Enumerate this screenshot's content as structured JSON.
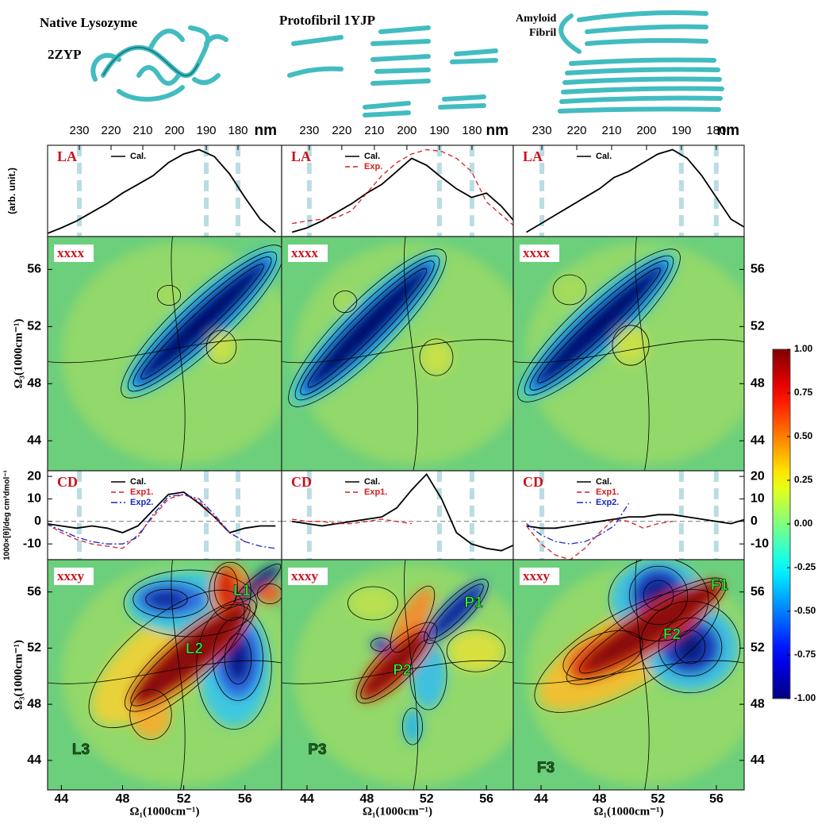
{
  "structures": [
    {
      "title": "Native Lysozyme",
      "subtitle": "2ZYP"
    },
    {
      "title": "Protofibril 1YJP"
    },
    {
      "title_lines": [
        "Amyloid",
        "Fibril"
      ]
    }
  ],
  "colorbar": {
    "ylim": [
      -1,
      1
    ],
    "yticks": [
      {
        "value": 1,
        "label": "1.00"
      },
      {
        "value": 0.75,
        "label": "0.75"
      },
      {
        "value": 0.5,
        "label": "0.50"
      },
      {
        "value": 0.25,
        "label": "0.25"
      },
      {
        "value": 0,
        "label": "0.00"
      },
      {
        "value": -0.25,
        "label": "-0.25"
      },
      {
        "value": -0.5,
        "label": "-0.50"
      },
      {
        "value": -0.75,
        "label": "-0.75"
      },
      {
        "value": -1,
        "label": "-1.00"
      }
    ]
  },
  "chart_data": [
    {
      "type": "line",
      "title": "LA",
      "ylabel": "(arb. unit.)",
      "xlim": [
        43.1,
        58.4
      ],
      "ylim": [
        0,
        1.05
      ],
      "x2lim": [
        240,
        166.25
      ],
      "x2ticks": [
        230,
        220,
        210,
        200,
        190,
        180
      ],
      "x2label": "nm",
      "vlines": [
        230,
        190,
        180
      ],
      "x": [
        43,
        44,
        45,
        46,
        47,
        48,
        49,
        50,
        51,
        52,
        53,
        54,
        55,
        56,
        57,
        58
      ],
      "series": [
        {
          "name": "Cal.",
          "color": "#000000",
          "dash": "solid",
          "values": [
            0.03,
            0.1,
            0.18,
            0.28,
            0.38,
            0.5,
            0.6,
            0.7,
            0.85,
            0.95,
            1.0,
            0.92,
            0.72,
            0.45,
            0.2,
            0.05
          ]
        }
      ]
    },
    {
      "type": "line",
      "title": "LA",
      "xlim": [
        42.3,
        57.8
      ],
      "ylim": [
        0,
        1.05
      ],
      "x2lim": [
        238.5,
        167.3
      ],
      "x2ticks": [
        230,
        220,
        210,
        200,
        190,
        180
      ],
      "x2label": "nm",
      "vlines": [
        230,
        190,
        180
      ],
      "x": [
        43,
        44,
        45,
        46,
        47,
        48,
        49,
        50,
        51,
        52,
        53,
        54,
        55,
        56,
        57,
        58
      ],
      "series": [
        {
          "name": "Cal.",
          "color": "#000000",
          "dash": "solid",
          "values": [
            0.05,
            0.1,
            0.18,
            0.28,
            0.38,
            0.5,
            0.6,
            0.75,
            0.9,
            0.82,
            0.68,
            0.55,
            0.45,
            0.5,
            0.35,
            0.15
          ]
        },
        {
          "name": "Exp.",
          "color": "#d42020",
          "dash": "dashed",
          "values": [
            0.15,
            0.18,
            0.2,
            0.22,
            0.3,
            0.5,
            0.7,
            0.85,
            0.95,
            1.0,
            0.98,
            0.9,
            0.75,
            0.4,
            0.25,
            0.1
          ]
        }
      ]
    },
    {
      "type": "line",
      "title": "LA",
      "xlim": [
        42.1,
        57.9
      ],
      "ylim": [
        0,
        1.05
      ],
      "x2lim": [
        238.2,
        172
      ],
      "x2ticks": [
        230,
        220,
        210,
        200,
        190,
        180
      ],
      "x2label": "nm",
      "vlines": [
        230,
        190,
        180
      ],
      "x": [
        43,
        44,
        45,
        46,
        47,
        48,
        49,
        50,
        51,
        52,
        53,
        54,
        55,
        56,
        57,
        58
      ],
      "series": [
        {
          "name": "Cal.",
          "color": "#000000",
          "dash": "solid",
          "values": [
            0.05,
            0.15,
            0.25,
            0.35,
            0.45,
            0.55,
            0.68,
            0.75,
            0.85,
            0.95,
            1.0,
            0.9,
            0.7,
            0.45,
            0.2,
            0.1
          ]
        }
      ]
    },
    {
      "type": "contour",
      "title": "xxxx",
      "ylabel": "Ω₃(1000cm⁻¹)",
      "xlim": [
        43.1,
        58.4
      ],
      "ylim": [
        41.9,
        58.3
      ],
      "yticks": [
        44,
        48,
        52,
        56
      ],
      "yaxis": "left"
    },
    {
      "type": "contour",
      "title": "xxxx",
      "xlim": [
        42.3,
        57.8
      ],
      "ylim": [
        41.9,
        58.3
      ]
    },
    {
      "type": "contour",
      "title": "xxxx",
      "xlim": [
        42.1,
        57.9
      ],
      "ylim": [
        41.9,
        58.3
      ],
      "yticks": [
        44,
        48,
        52,
        56
      ],
      "yaxis": "right"
    },
    {
      "type": "line",
      "title": "CD",
      "ylabel": "1000×[θ]/deg cm²dmol⁻¹",
      "xlim": [
        43.1,
        58.4
      ],
      "ylim": [
        -17,
        22.5
      ],
      "yticks": [
        20,
        10,
        0,
        -10
      ],
      "yaxis": "left",
      "zero_line": true,
      "x2lim": [
        240,
        166.25
      ],
      "vlines": [
        230,
        190,
        180
      ],
      "x": [
        43,
        44,
        45,
        46,
        47,
        48,
        49,
        50,
        51,
        52,
        53,
        54,
        55,
        56,
        57,
        58
      ],
      "series": [
        {
          "name": "Cal.",
          "color": "#000000",
          "dash": "solid",
          "values": [
            -1,
            -2,
            -3,
            -2,
            -3,
            -5,
            -2,
            5,
            12,
            13,
            8,
            2,
            -5,
            -3,
            -2,
            -2
          ]
        },
        {
          "name": "Exp1.",
          "color": "#d42020",
          "dash": "dashed",
          "values": [
            -1,
            -5,
            -8,
            -10,
            -11,
            -12,
            -6,
            2,
            10,
            12,
            9,
            2,
            -5,
            -9,
            null,
            null
          ]
        },
        {
          "name": "Exp2.",
          "color": "#1a28c8",
          "dash": "dashdot",
          "values": [
            -1,
            -4,
            -7,
            -9,
            -10,
            -10,
            -7,
            3,
            11,
            12,
            10,
            3,
            -5,
            -9,
            -11,
            -12
          ]
        }
      ]
    },
    {
      "type": "line",
      "title": "CD",
      "xlim": [
        42.3,
        57.8
      ],
      "ylim": [
        -17,
        22.5
      ],
      "zero_line": true,
      "x2lim": [
        238.5,
        167.3
      ],
      "vlines": [
        230,
        190,
        180
      ],
      "x": [
        43,
        44,
        45,
        46,
        47,
        48,
        49,
        50,
        51,
        52,
        53,
        54,
        55,
        56,
        57,
        58
      ],
      "series": [
        {
          "name": "Cal.",
          "color": "#000000",
          "dash": "solid",
          "values": [
            0,
            -1,
            -2,
            -1,
            0,
            1,
            2,
            6,
            14,
            21,
            10,
            -5,
            -10,
            -12,
            -13,
            -10
          ]
        },
        {
          "name": "Exp1.",
          "color": "#d42020",
          "dash": "dashed",
          "values": [
            1,
            0,
            0,
            -1,
            -1,
            0,
            1,
            0,
            -1,
            null,
            null,
            null,
            null,
            null,
            null,
            null
          ]
        }
      ]
    },
    {
      "type": "line",
      "title": "CD",
      "xlim": [
        42.1,
        57.9
      ],
      "ylim": [
        -17,
        22.5
      ],
      "yticks": [
        20,
        10,
        0,
        -10
      ],
      "yaxis": "right",
      "zero_line": true,
      "x2lim": [
        238.2,
        172
      ],
      "vlines": [
        230,
        190,
        180
      ],
      "x": [
        43,
        44,
        45,
        46,
        47,
        48,
        49,
        50,
        51,
        52,
        53,
        54,
        55,
        56,
        57,
        58
      ],
      "series": [
        {
          "name": "Cal.",
          "color": "#000000",
          "dash": "solid",
          "values": [
            -2,
            -3,
            -3,
            -2,
            -1,
            0,
            1,
            2,
            2,
            3,
            3,
            2,
            1,
            0,
            -1,
            1
          ]
        },
        {
          "name": "Exp1.",
          "color": "#d42020",
          "dash": "dashed",
          "values": [
            -2,
            -10,
            -15,
            -17,
            -12,
            -5,
            1,
            0,
            -3,
            -1,
            0,
            null,
            null,
            null,
            null,
            null
          ]
        },
        {
          "name": "Exp2.",
          "color": "#1a28c8",
          "dash": "dashdot",
          "values": [
            -1,
            -6,
            -9,
            -10,
            -9,
            -6,
            -2,
            8,
            null,
            null,
            null,
            null,
            null,
            null,
            null,
            null
          ]
        }
      ]
    },
    {
      "type": "contour",
      "title": "xxxy",
      "ylabel": "Ω₃(1000cm⁻¹)",
      "xlabel": "Ω₁(1000cm⁻¹)",
      "xlim": [
        43.1,
        58.4
      ],
      "ylim": [
        41.9,
        58.3
      ],
      "xticks": [
        44,
        48,
        52,
        56
      ],
      "yticks": [
        44,
        48,
        52,
        56
      ],
      "yaxis": "left",
      "annotations": [
        "L1",
        "L2",
        "L3"
      ]
    },
    {
      "type": "contour",
      "title": "xxxy",
      "xlabel": "Ω₁(1000cm⁻¹)",
      "xlim": [
        42.3,
        57.8
      ],
      "ylim": [
        41.9,
        58.3
      ],
      "xticks": [
        44,
        48,
        52,
        56
      ],
      "annotations": [
        "P1",
        "P2",
        "P3"
      ]
    },
    {
      "type": "contour",
      "title": "xxxy",
      "xlabel": "Ω₁(1000cm⁻¹)",
      "xlim": [
        42.1,
        57.9
      ],
      "ylim": [
        41.9,
        58.3
      ],
      "xticks": [
        44,
        48,
        52,
        56
      ],
      "yticks": [
        44,
        48,
        52,
        56
      ],
      "yaxis": "right",
      "annotations": [
        "F1",
        "F2",
        "F3"
      ]
    }
  ]
}
